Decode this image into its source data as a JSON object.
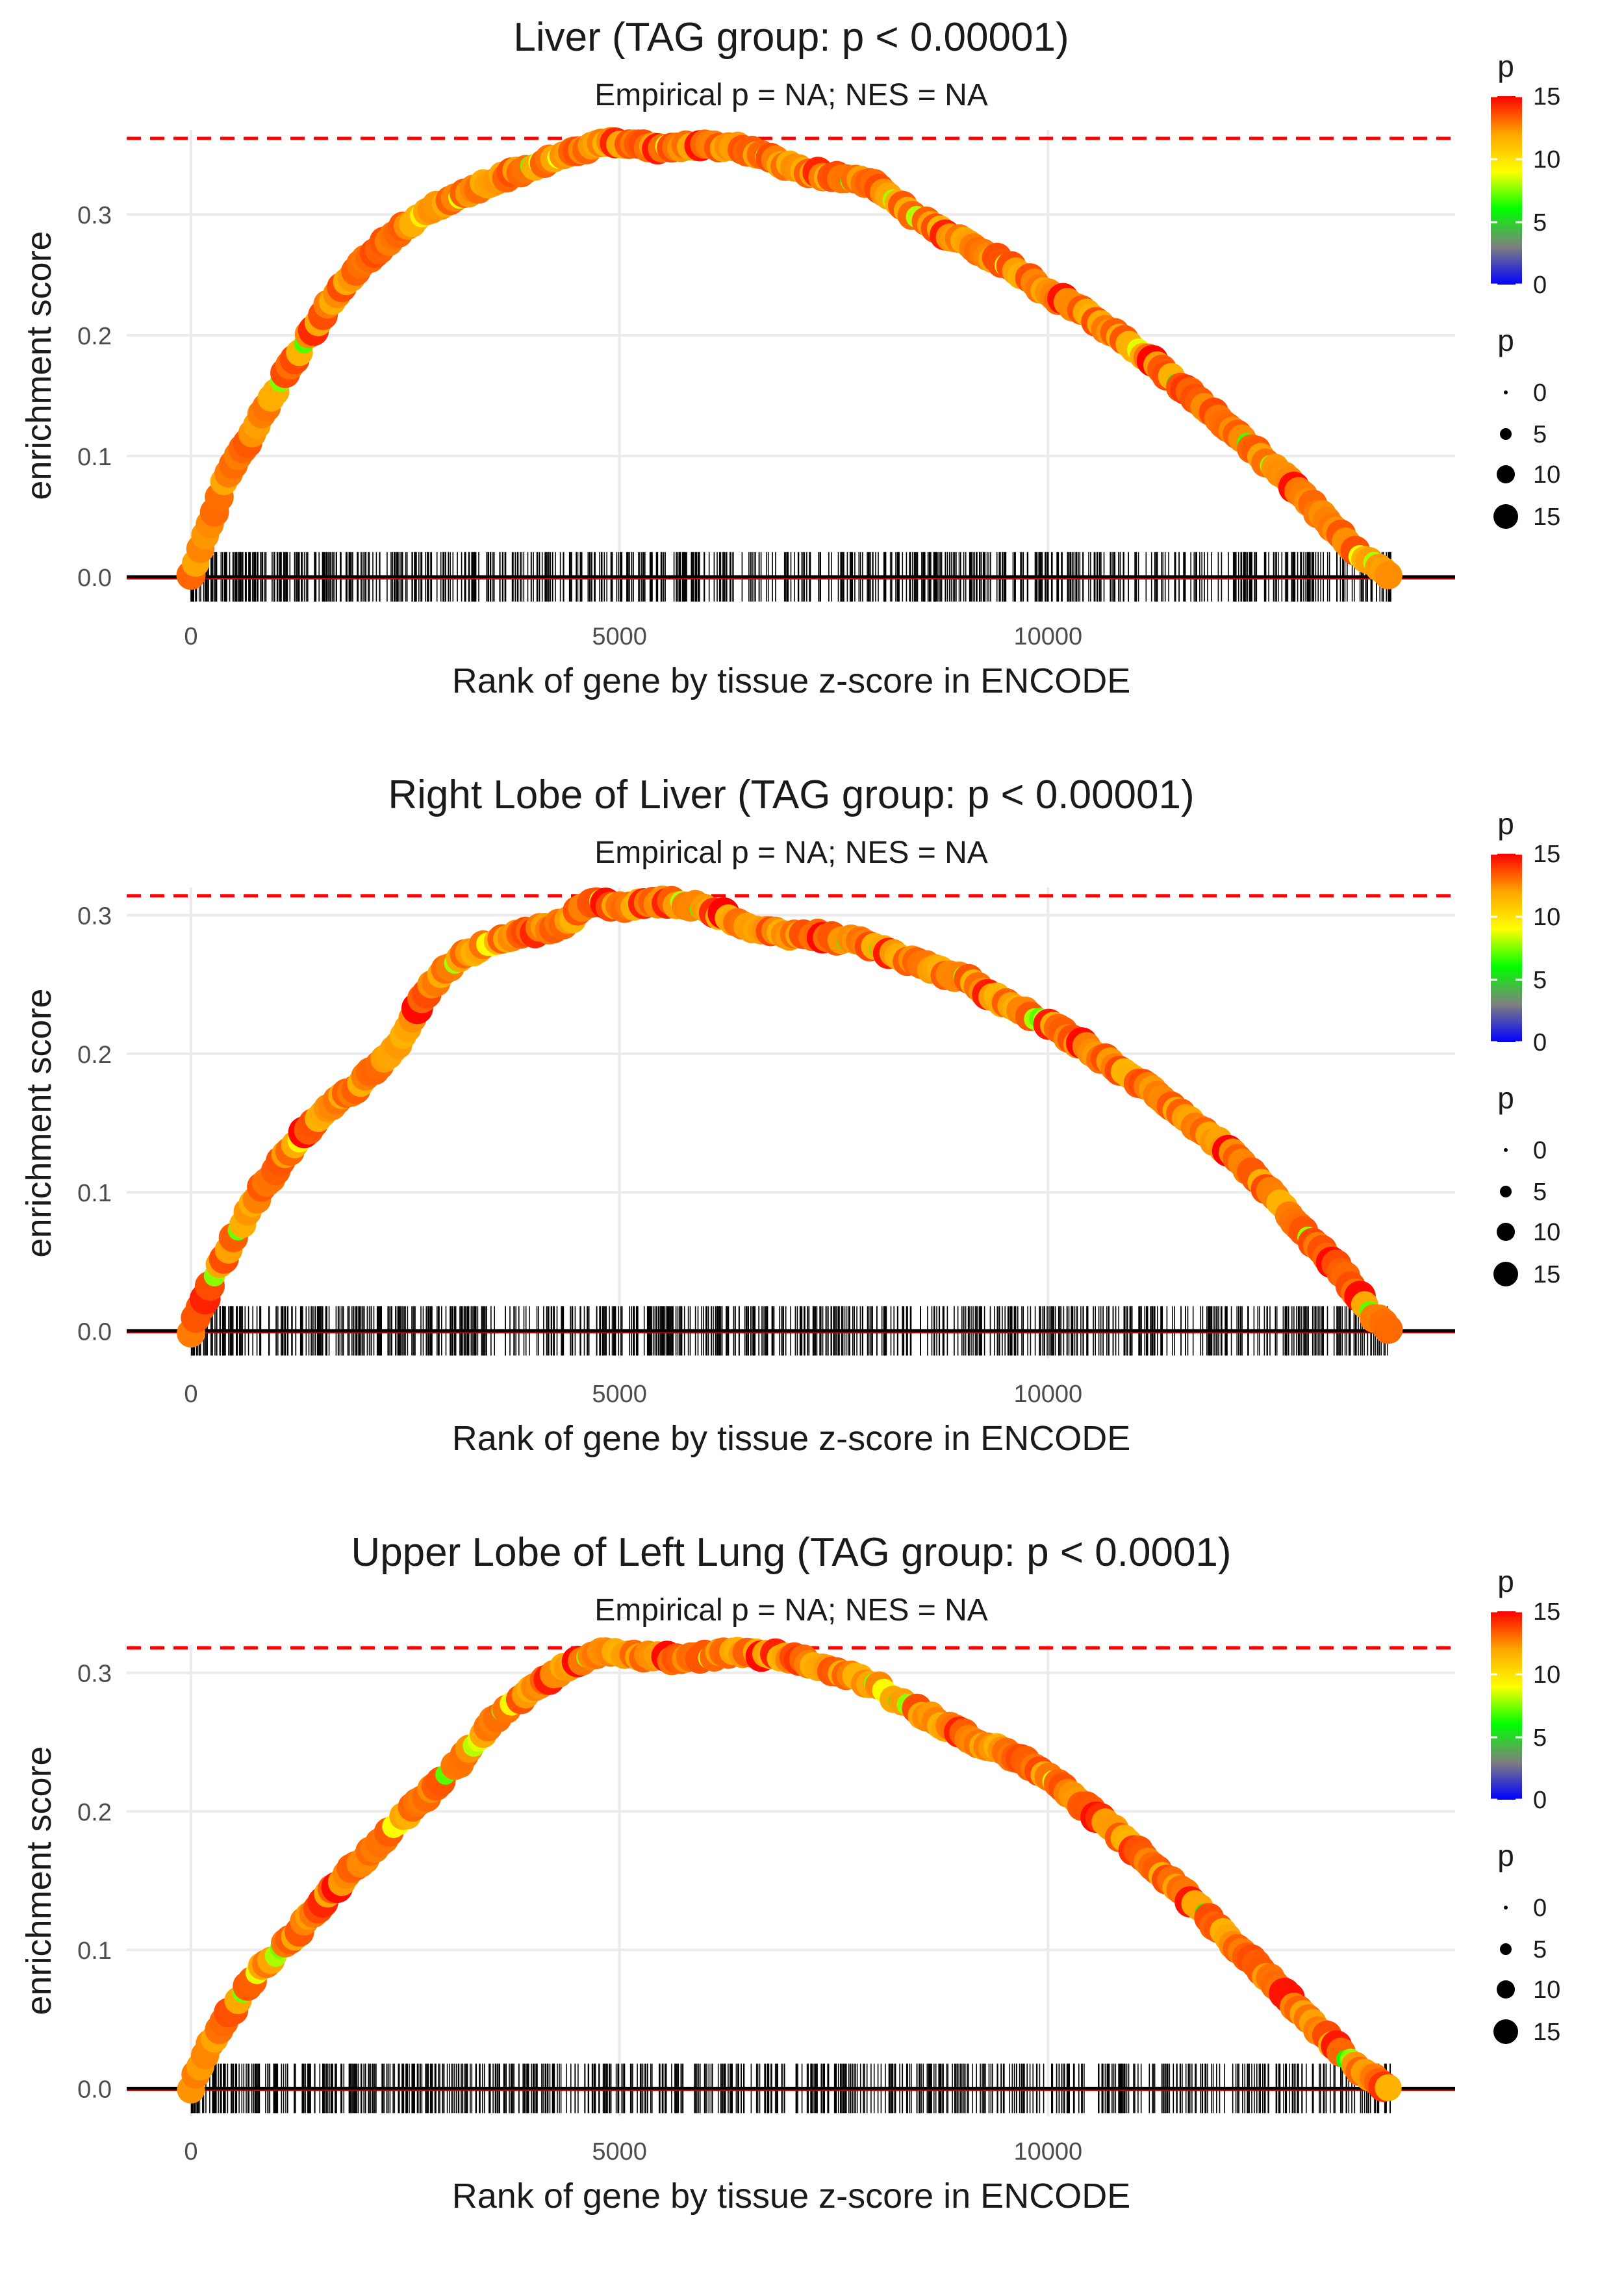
{
  "chart_data": [
    {
      "type": "scatter",
      "title": "Liver (TAG group: p < 0.00001)",
      "subtitle": "Empirical p = NA; NES = NA",
      "xlabel": "Rank of gene by tissue z-score in ENCODE",
      "ylabel": "enrichment score",
      "xlim": [
        -750,
        14750
      ],
      "ylim": [
        -0.02,
        0.37
      ],
      "xticks": [
        0,
        5000,
        10000
      ],
      "xtick_labels": [
        "0",
        "5000",
        "10000"
      ],
      "yticks": [
        0,
        0.1,
        0.2,
        0.3
      ],
      "ytick_labels": [
        "0.0",
        "0.1",
        "0.2",
        "0.3"
      ],
      "max_es": 0.363,
      "grid": true,
      "curve_x": [
        0,
        200,
        400,
        800,
        1200,
        1600,
        2000,
        2400,
        2800,
        3200,
        3600,
        4000,
        4400,
        4800,
        5200,
        5600,
        6000,
        6400,
        6800,
        7200,
        7600,
        8000,
        8400,
        8800,
        9200,
        9600,
        10000,
        10400,
        10800,
        11200,
        11600,
        12000,
        12400,
        12800,
        13200,
        13600,
        14000
      ],
      "curve_y": [
        0,
        0.04,
        0.08,
        0.13,
        0.18,
        0.225,
        0.26,
        0.285,
        0.305,
        0.318,
        0.33,
        0.34,
        0.35,
        0.36,
        0.358,
        0.355,
        0.357,
        0.356,
        0.345,
        0.335,
        0.33,
        0.325,
        0.3,
        0.285,
        0.27,
        0.255,
        0.235,
        0.22,
        0.2,
        0.18,
        0.155,
        0.13,
        0.105,
        0.08,
        0.05,
        0.02,
        0
      ],
      "hits_range": [
        0,
        14000
      ],
      "colorbar": {
        "title": "p",
        "labels": [
          "0",
          "5",
          "10",
          "15"
        ],
        "colors": [
          "#0000ff",
          "#7f7f7f",
          "#00ff00",
          "#ffff00",
          "#ffa500",
          "#ff0000"
        ]
      },
      "size_legend": {
        "title": "p",
        "labels": [
          "0",
          "5",
          "10",
          "15"
        ]
      }
    },
    {
      "type": "scatter",
      "title": "Right Lobe of Liver (TAG group: p < 0.00001)",
      "subtitle": "Empirical p = NA; NES = NA",
      "xlabel": "Rank of gene by tissue z-score in ENCODE",
      "ylabel": "enrichment score",
      "xlim": [
        -750,
        14750
      ],
      "ylim": [
        -0.02,
        0.32
      ],
      "xticks": [
        0,
        5000,
        10000
      ],
      "xtick_labels": [
        "0",
        "5000",
        "10000"
      ],
      "yticks": [
        0,
        0.1,
        0.2,
        0.3
      ],
      "ytick_labels": [
        "0.0",
        "0.1",
        "0.2",
        "0.3"
      ],
      "max_es": 0.314,
      "grid": true,
      "curve_x": [
        0,
        200,
        400,
        800,
        1200,
        1600,
        2000,
        2400,
        2800,
        3200,
        3600,
        4000,
        4400,
        4700,
        5000,
        5400,
        5800,
        6200,
        6600,
        7000,
        7400,
        7800,
        8200,
        8600,
        9000,
        9400,
        9800,
        10200,
        10600,
        11000,
        11400,
        11800,
        12200,
        12600,
        13000,
        13400,
        13800,
        14000
      ],
      "curve_y": [
        0,
        0.03,
        0.055,
        0.1,
        0.135,
        0.16,
        0.18,
        0.205,
        0.25,
        0.272,
        0.283,
        0.288,
        0.295,
        0.312,
        0.305,
        0.31,
        0.308,
        0.3,
        0.29,
        0.286,
        0.285,
        0.28,
        0.272,
        0.262,
        0.255,
        0.24,
        0.228,
        0.214,
        0.198,
        0.182,
        0.165,
        0.145,
        0.125,
        0.1,
        0.07,
        0.045,
        0.01,
        0
      ],
      "hits_range": [
        0,
        14000
      ],
      "colorbar": {
        "title": "p",
        "labels": [
          "0",
          "5",
          "10",
          "15"
        ],
        "colors": [
          "#0000ff",
          "#7f7f7f",
          "#00ff00",
          "#ffff00",
          "#ffa500",
          "#ff0000"
        ]
      },
      "size_legend": {
        "title": "p",
        "labels": [
          "0",
          "5",
          "10",
          "15"
        ]
      }
    },
    {
      "type": "scatter",
      "title": "Upper Lobe of Left Lung (TAG group: p < 0.0001)",
      "subtitle": "Empirical p = NA; NES = NA",
      "xlabel": "Rank of gene by tissue z-score in ENCODE",
      "ylabel": "enrichment score",
      "xlim": [
        -750,
        14750
      ],
      "ylim": [
        -0.02,
        0.32
      ],
      "xticks": [
        0,
        5000,
        10000
      ],
      "xtick_labels": [
        "0",
        "5000",
        "10000"
      ],
      "yticks": [
        0,
        0.1,
        0.2,
        0.3
      ],
      "ytick_labels": [
        "0.0",
        "0.1",
        "0.2",
        "0.3"
      ],
      "max_es": 0.318,
      "grid": true,
      "curve_x": [
        0,
        200,
        400,
        800,
        1200,
        1600,
        2000,
        2400,
        2800,
        3200,
        3600,
        4000,
        4400,
        4800,
        5200,
        5600,
        6000,
        6400,
        6800,
        7200,
        7600,
        8000,
        8400,
        8800,
        9200,
        9600,
        10000,
        10400,
        10800,
        11200,
        11600,
        12000,
        12400,
        12800,
        13200,
        13600,
        14000
      ],
      "curve_y": [
        0,
        0.03,
        0.05,
        0.085,
        0.11,
        0.14,
        0.165,
        0.19,
        0.215,
        0.24,
        0.27,
        0.29,
        0.305,
        0.315,
        0.312,
        0.31,
        0.312,
        0.315,
        0.313,
        0.308,
        0.3,
        0.29,
        0.275,
        0.262,
        0.25,
        0.24,
        0.225,
        0.205,
        0.185,
        0.162,
        0.14,
        0.115,
        0.09,
        0.065,
        0.04,
        0.015,
        0
      ],
      "hits_range": [
        0,
        14000
      ],
      "colorbar": {
        "title": "p",
        "labels": [
          "0",
          "5",
          "10",
          "15"
        ],
        "colors": [
          "#0000ff",
          "#7f7f7f",
          "#00ff00",
          "#ffff00",
          "#ffa500",
          "#ff0000"
        ]
      },
      "size_legend": {
        "title": "p",
        "labels": [
          "0",
          "5",
          "10",
          "15"
        ]
      }
    }
  ]
}
